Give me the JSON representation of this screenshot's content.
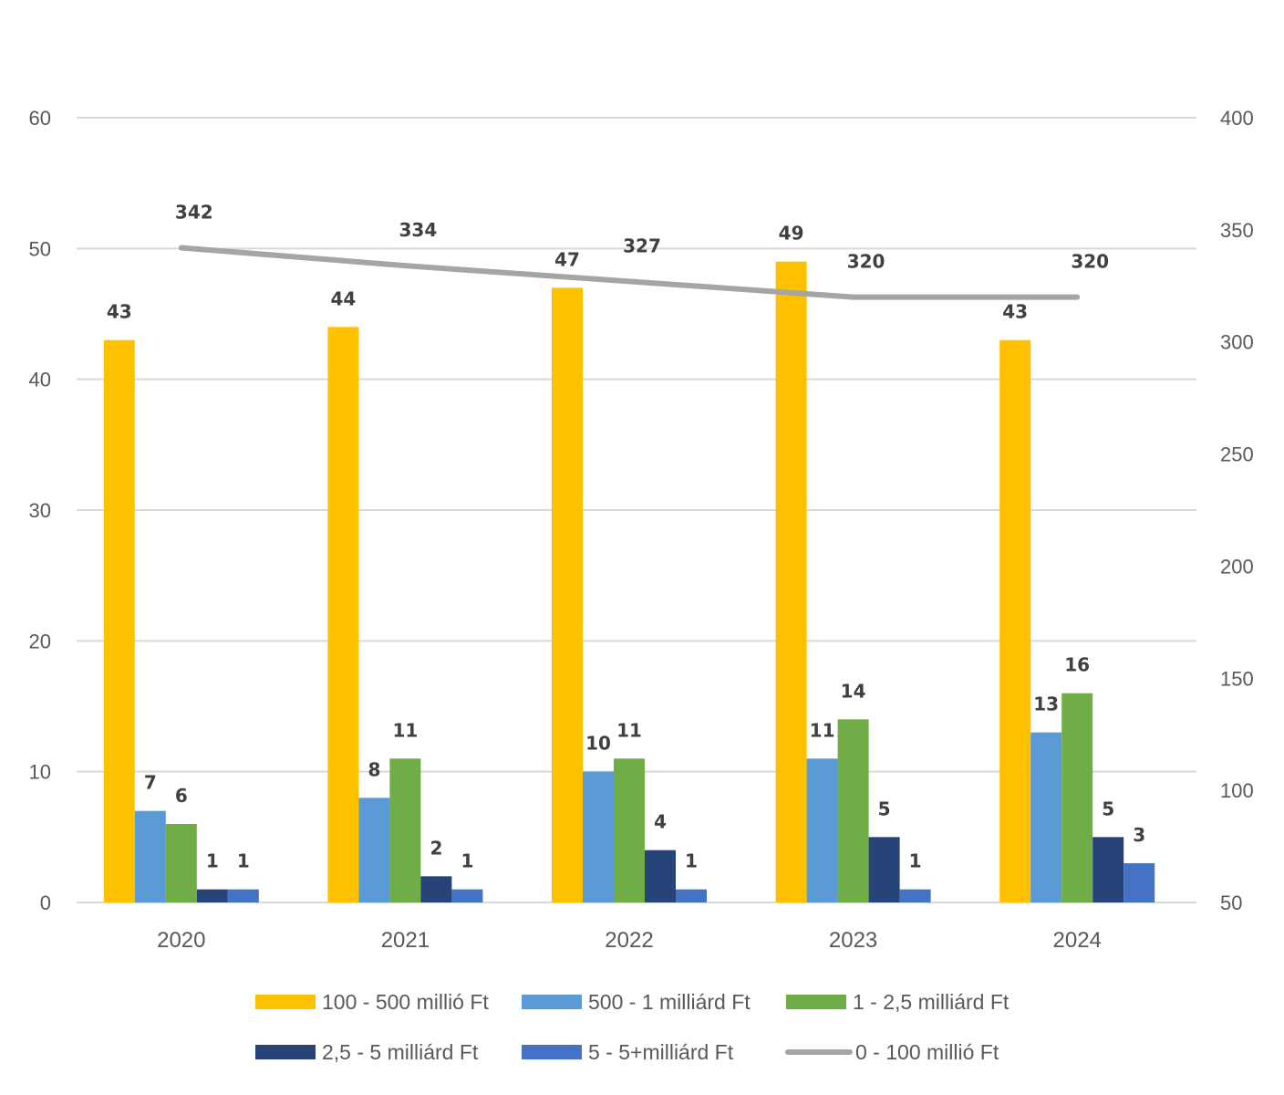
{
  "chart_data": {
    "type": "bar",
    "title": "",
    "xlabel": "",
    "ylabel": "",
    "categories": [
      "2020",
      "2021",
      "2022",
      "2023",
      "2024"
    ],
    "ylim": [
      0,
      60
    ],
    "yticks": [
      0,
      10,
      20,
      30,
      40,
      50,
      60
    ],
    "y2lim": [
      50,
      400
    ],
    "y2ticks": [
      50,
      100,
      150,
      200,
      250,
      300,
      350,
      400
    ],
    "grid": true,
    "legend_position": "bottom",
    "series": [
      {
        "name": "100 - 500 millió Ft",
        "type": "bar",
        "axis": "left",
        "color": "#FFC000",
        "values": [
          43,
          44,
          47,
          49,
          43
        ]
      },
      {
        "name": "500 - 1 milliárd Ft",
        "type": "bar",
        "axis": "left",
        "color": "#5B9BD5",
        "values": [
          7,
          8,
          10,
          11,
          13
        ]
      },
      {
        "name": "1 - 2,5 milliárd Ft",
        "type": "bar",
        "axis": "left",
        "color": "#70AD47",
        "values": [
          6,
          11,
          11,
          14,
          16
        ]
      },
      {
        "name": "2,5 - 5 milliárd Ft",
        "type": "bar",
        "axis": "left",
        "color": "#264478",
        "values": [
          1,
          2,
          4,
          5,
          5
        ]
      },
      {
        "name": "5 - 5+milliárd Ft",
        "type": "bar",
        "axis": "left",
        "color": "#4472C4",
        "values": [
          1,
          1,
          1,
          1,
          3
        ]
      },
      {
        "name": "0 - 100 millió Ft",
        "type": "line",
        "axis": "right",
        "color": "#A5A5A5",
        "values": [
          342,
          334,
          327,
          320,
          320
        ]
      }
    ]
  }
}
